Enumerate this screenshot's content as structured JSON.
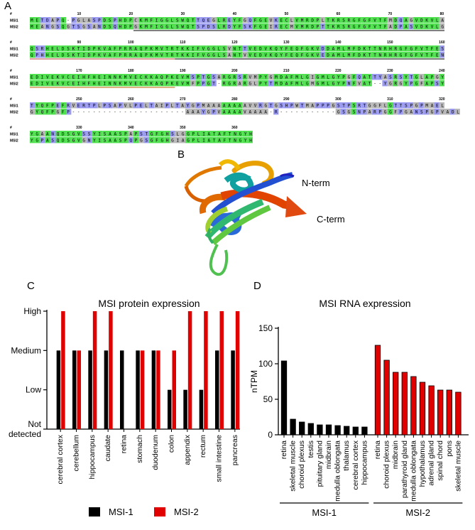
{
  "panels": {
    "a": "A",
    "b": "B",
    "c": "C",
    "d": "D"
  },
  "alignment": {
    "blocks": [
      {
        "header": "#",
        "numbers": [
          "10",
          "20",
          "30",
          "40",
          "50",
          "60",
          "70",
          "80"
        ],
        "rows": [
          {
            "label": "MSI1",
            "seq": "METDAPQ-PGLASPDSPHDPCKMFIGGLSWQTTQEGLREYFGQFGEVKECLVMRDPLTKRSRGFGFVTFMDQAGVDKVLA"
          },
          {
            "label": "MSI2",
            "seq": "MEANGSQGTSGSANDSQHDPGKMFIGGLSWQTSPDSLRDYFSKFGEIRECMVMRDPTTKRSRGFGFVTFADPASVDKVLG"
          }
        ]
      },
      {
        "header": "#",
        "numbers": [
          "90",
          "100",
          "110",
          "120",
          "130",
          "140",
          "150",
          "160"
        ],
        "rows": [
          {
            "label": "MSI1",
            "seq": "QSRHELDSKTIDPKVAFPRRAQPKMVTRTKKIFVGGLSVNTTVEDVKQYFEQFGKVDDAMLMFDKTTNRHRGFGFVTFES"
          },
          {
            "label": "MSI2",
            "seq": "QPHHELDSKTIDPKVAFPRRAQPKMVTRTKKIFVGGLSANTVVEDVKQYFEQFGKVEDAMLMFDKTTNRHRGFGFVTFEN"
          }
        ]
      },
      {
        "header": "#",
        "numbers": [
          "170",
          "180",
          "190",
          "200",
          "210",
          "220",
          "230",
          "240"
        ],
        "rows": [
          {
            "label": "MSI1",
            "seq": "EDIVEKVCEIHFHEINNKMVECKKAQPKEVMSPTGSARGRSRVMPYGMDAFMLGIGMLGYPGFQATTYASRSYTGLAPGY"
          },
          {
            "label": "MSI2",
            "seq": "EDIVEKVCEIHFHEINNKMVECKKAQPKEVMFPPGT-RGRARGLPYTMDAFMLGMGMLGYPNFVAT--YGRGYPGFAPSY"
          }
        ]
      },
      {
        "header": "#",
        "numbers": [
          "250",
          "260",
          "270",
          "280",
          "290",
          "300",
          "310",
          "320"
        ],
        "rows": [
          {
            "label": "MSI1",
            "seq": "TYQFPEFRVERTPLPSAPVLPELTAIPLTAYGPMAAAAAAAAVVRGTGSHPWTMAPPPGSTPSRTGGFLGTTSPGPMAEL"
          },
          {
            "label": "MSI2",
            "seq": "GYQFPGFP----------------------AAAYGPVAAAAVAAAA-R-----------GSGSNPARPGGFPGANSPGPVADL"
          }
        ]
      },
      {
        "header": "#",
        "numbers": [
          "330",
          "340",
          "350",
          "360"
        ],
        "rows": [
          {
            "label": "MSI1",
            "seq": "YGAANQDSGVSSYISAASPAPSTGFGHSLGGPLIATAFTNGYH"
          },
          {
            "label": "MSI2",
            "seq": "YGPASQDSGVGNYISAASPQPGSGFGHGIAGPLIATAFTNGYH"
          }
        ]
      }
    ]
  },
  "structure": {
    "n_term": "N-term",
    "c_term": "C-term"
  },
  "protein_chart": {
    "chart_data": {
      "type": "bar",
      "title": "MSI protein expression",
      "xlabel": "",
      "ylabel": "",
      "levels": [
        "Not detected",
        "Low",
        "Medium",
        "High"
      ],
      "ytick_lines": [
        [
          "Not",
          "detected"
        ],
        [
          "Low"
        ],
        [
          "Medium"
        ],
        [
          "High"
        ]
      ],
      "ylim": [
        0,
        3
      ],
      "categories": [
        "cerebral cortex",
        "cerebellum",
        "hippocampus",
        "caudate",
        "retina",
        "stomach",
        "duodenum",
        "colon",
        "appendix",
        "rectum",
        "small intestine",
        "pancreas"
      ],
      "series": [
        {
          "name": "MSI-1",
          "color": "#000000",
          "values": [
            2,
            2,
            2,
            2,
            2,
            2,
            2,
            1,
            1,
            1,
            2,
            2
          ]
        },
        {
          "name": "MSI-2",
          "color": "#e00000",
          "values": [
            3,
            2,
            3,
            3,
            0,
            2,
            2,
            2,
            3,
            3,
            3,
            3
          ]
        }
      ],
      "legend": "bottom"
    }
  },
  "rna_chart": {
    "chart_data": {
      "type": "bar",
      "title": "MSI RNA expression",
      "xlabel": "",
      "ylabel": "nTPM",
      "ylim": [
        0,
        150
      ],
      "yticks": [
        0,
        50,
        100,
        150
      ],
      "groups": [
        {
          "name": "MSI-1",
          "color": "#000000",
          "categories": [
            "retina",
            "skeletal muscle",
            "choroid plexus",
            "testis",
            "pituitary gland",
            "midbrain",
            "medulla oblongata",
            "thalamus",
            "cerebral cortex",
            "hippocampus"
          ],
          "values": [
            104,
            22,
            18,
            16,
            14,
            14,
            13,
            12,
            11,
            11
          ]
        },
        {
          "name": "MSI-2",
          "color": "#e00000",
          "categories": [
            "retina",
            "choroid plexus",
            "midbrain",
            "parathyroid gland",
            "medulla oblongata",
            "hypothalamus",
            "adrenal gland",
            "spinal chord",
            "pons",
            "skeletal muscle"
          ],
          "values": [
            126,
            105,
            88,
            88,
            82,
            74,
            69,
            63,
            63,
            60
          ]
        }
      ]
    }
  }
}
